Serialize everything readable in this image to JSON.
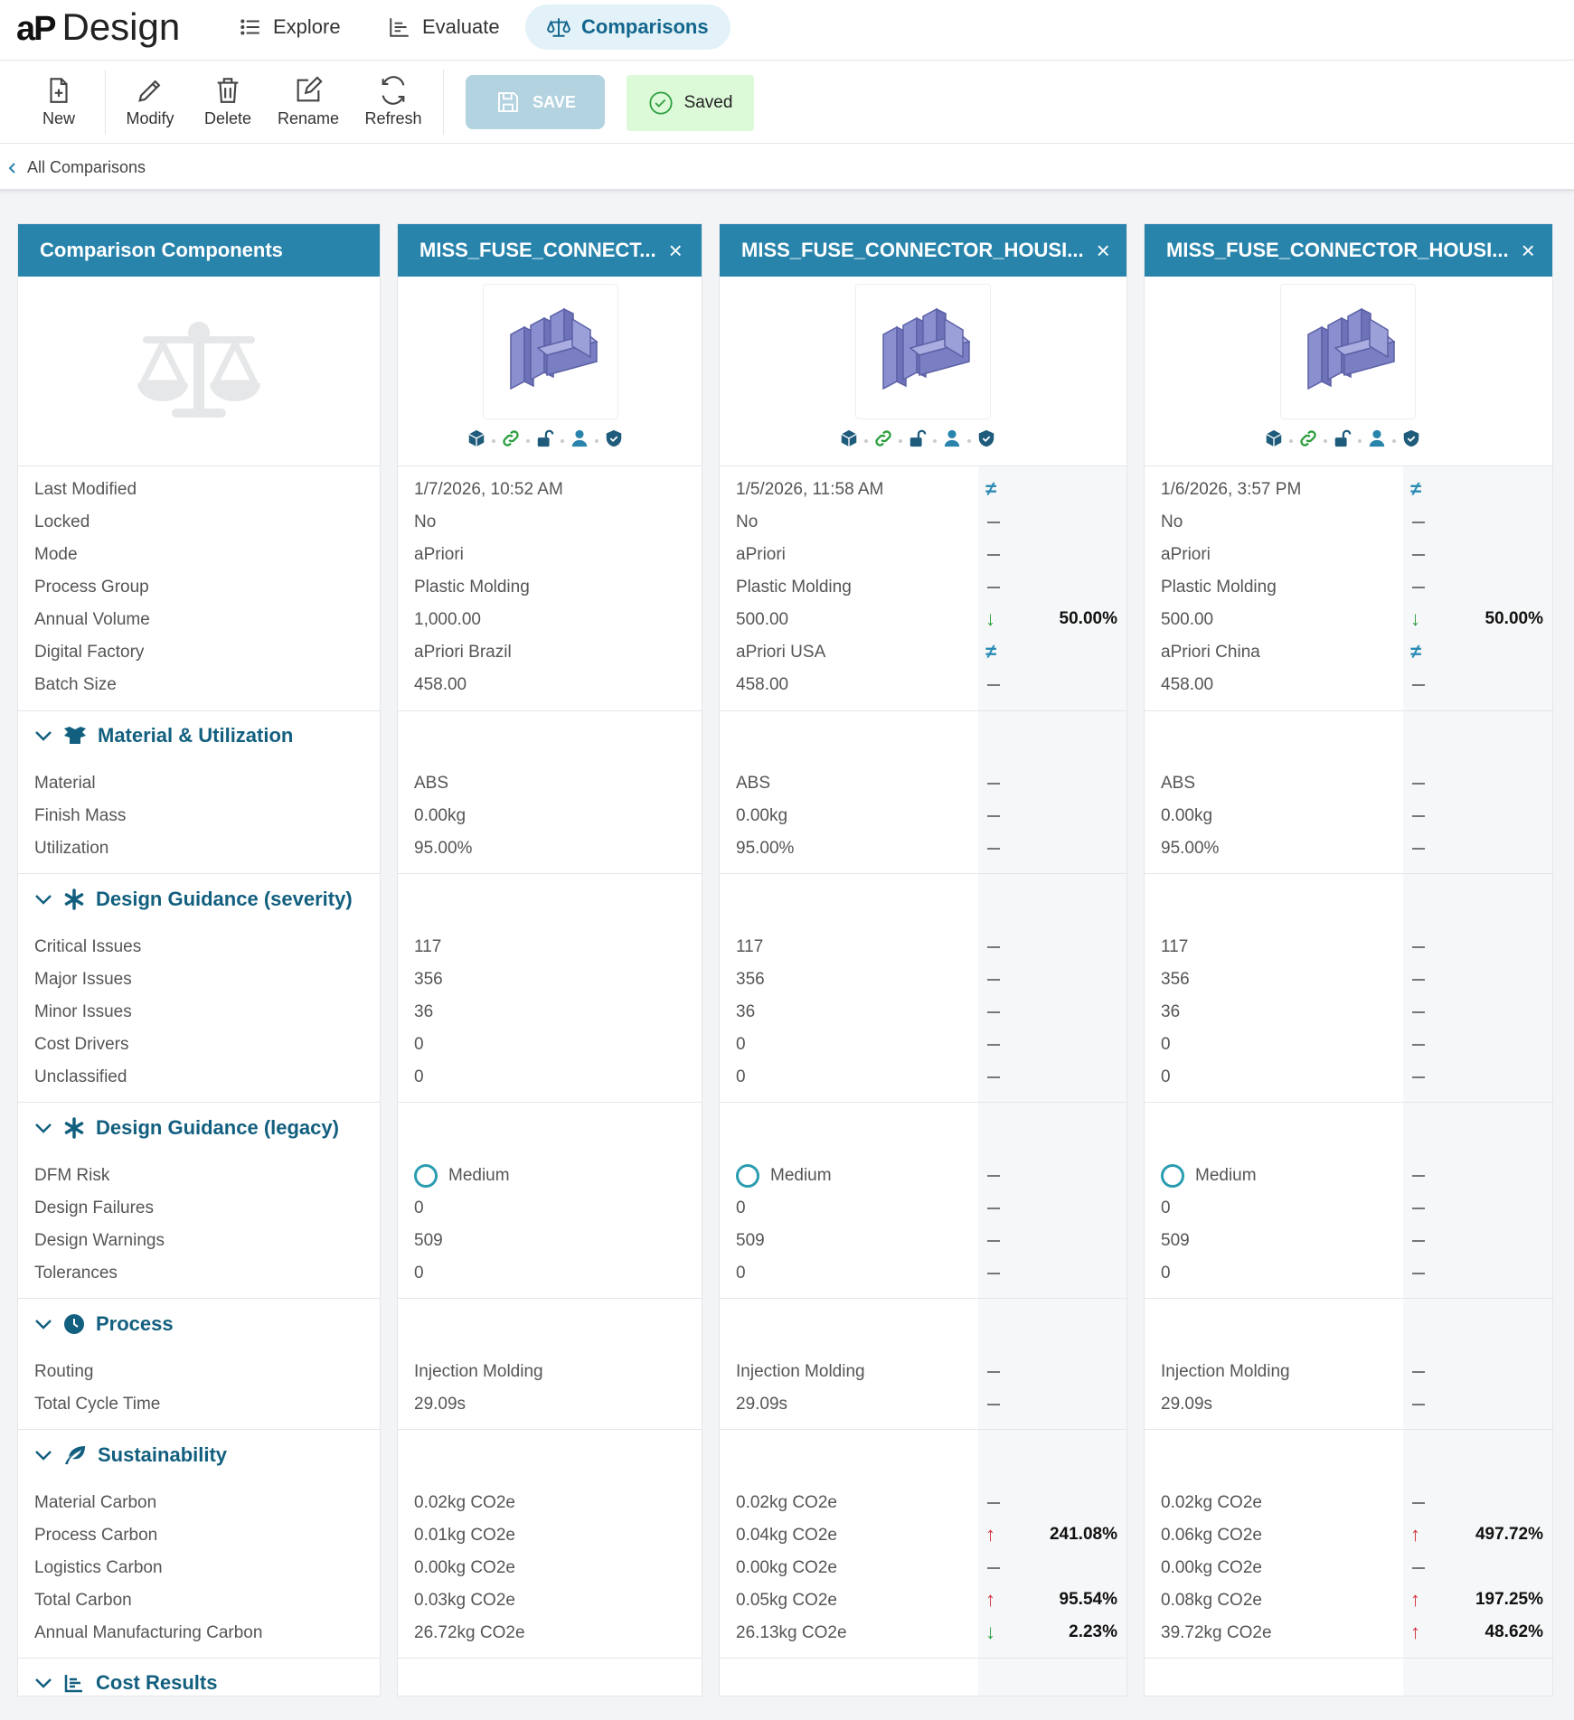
{
  "app": {
    "logo_ap": "aP",
    "logo_name": "Design"
  },
  "nav": {
    "explore": "Explore",
    "evaluate": "Evaluate",
    "comparisons": "Comparisons"
  },
  "toolbar": {
    "new": "New",
    "modify": "Modify",
    "delete": "Delete",
    "rename": "Rename",
    "refresh": "Refresh",
    "save": "SAVE",
    "saved": "Saved"
  },
  "breadcrumb": {
    "back": "All Comparisons"
  },
  "components": {
    "title": "Comparison Components",
    "info_labels": [
      "Last Modified",
      "Locked",
      "Mode",
      "Process Group",
      "Annual Volume",
      "Digital Factory",
      "Batch Size"
    ],
    "sections": {
      "material": {
        "title": "Material & Utilization",
        "labels": [
          "Material",
          "Finish Mass",
          "Utilization"
        ]
      },
      "severity": {
        "title": "Design Guidance (severity)",
        "labels": [
          "Critical Issues",
          "Major Issues",
          "Minor Issues",
          "Cost Drivers",
          "Unclassified"
        ]
      },
      "legacy": {
        "title": "Design Guidance (legacy)",
        "labels": [
          "DFM Risk",
          "Design Failures",
          "Design Warnings",
          "Tolerances"
        ]
      },
      "process": {
        "title": "Process",
        "labels": [
          "Routing",
          "Total Cycle Time"
        ]
      },
      "sustainability": {
        "title": "Sustainability",
        "labels": [
          "Material Carbon",
          "Process Carbon",
          "Logistics Carbon",
          "Total Carbon",
          "Annual Manufacturing Carbon"
        ]
      },
      "cost": {
        "title": "Cost Results"
      }
    }
  },
  "columns": [
    {
      "title": "MISS_FUSE_CONNECT...",
      "info": [
        "1/7/2026, 10:52 AM",
        "No",
        "aPriori",
        "Plastic Molding",
        "1,000.00",
        "aPriori Brazil",
        "458.00"
      ],
      "material": [
        "ABS",
        "0.00kg",
        "95.00%"
      ],
      "severity": [
        "117",
        "356",
        "36",
        "0",
        "0"
      ],
      "legacy": [
        "Medium",
        "0",
        "509",
        "0"
      ],
      "process": [
        "Injection Molding",
        "29.09s"
      ],
      "sustainability": [
        "0.02kg CO2e",
        "0.01kg CO2e",
        "0.00kg CO2e",
        "0.03kg CO2e",
        "26.72kg CO2e"
      ]
    },
    {
      "title": "MISS_FUSE_CONNECTOR_HOUSI...",
      "info": [
        "1/5/2026, 11:58 AM",
        "No",
        "aPriori",
        "Plastic Molding",
        "500.00",
        "aPriori USA",
        "458.00"
      ],
      "material": [
        "ABS",
        "0.00kg",
        "95.00%"
      ],
      "severity": [
        "117",
        "356",
        "36",
        "0",
        "0"
      ],
      "legacy": [
        "Medium",
        "0",
        "509",
        "0"
      ],
      "process": [
        "Injection Molding",
        "29.09s"
      ],
      "sustainability": [
        "0.02kg CO2e",
        "0.04kg CO2e",
        "0.00kg CO2e",
        "0.05kg CO2e",
        "26.13kg CO2e"
      ],
      "info_diff": [
        "ne",
        "dash",
        "dash",
        "dash",
        "down",
        "ne",
        "dash"
      ],
      "info_pct": [
        "",
        "",
        "",
        "",
        "50.00%",
        "",
        ""
      ],
      "sus_diff": [
        "dash",
        "up",
        "dash",
        "up",
        "down"
      ],
      "sus_pct": [
        "",
        "241.08%",
        "",
        "95.54%",
        "2.23%"
      ]
    },
    {
      "title": "MISS_FUSE_CONNECTOR_HOUSI...",
      "info": [
        "1/6/2026, 3:57 PM",
        "No",
        "aPriori",
        "Plastic Molding",
        "500.00",
        "aPriori China",
        "458.00"
      ],
      "material": [
        "ABS",
        "0.00kg",
        "95.00%"
      ],
      "severity": [
        "117",
        "356",
        "36",
        "0",
        "0"
      ],
      "legacy": [
        "Medium",
        "0",
        "509",
        "0"
      ],
      "process": [
        "Injection Molding",
        "29.09s"
      ],
      "sustainability": [
        "0.02kg CO2e",
        "0.06kg CO2e",
        "0.00kg CO2e",
        "0.08kg CO2e",
        "39.72kg CO2e"
      ],
      "info_diff": [
        "ne",
        "dash",
        "dash",
        "dash",
        "down",
        "ne",
        "dash"
      ],
      "info_pct": [
        "",
        "",
        "",
        "",
        "50.00%",
        "",
        ""
      ],
      "sus_diff": [
        "dash",
        "up",
        "dash",
        "up",
        "up"
      ],
      "sus_pct": [
        "",
        "497.72%",
        "",
        "197.25%",
        "48.62%"
      ]
    }
  ],
  "symbols": {
    "not_equal": "≠",
    "arrow_down": "↓",
    "arrow_up": "↑",
    "close": "×"
  }
}
